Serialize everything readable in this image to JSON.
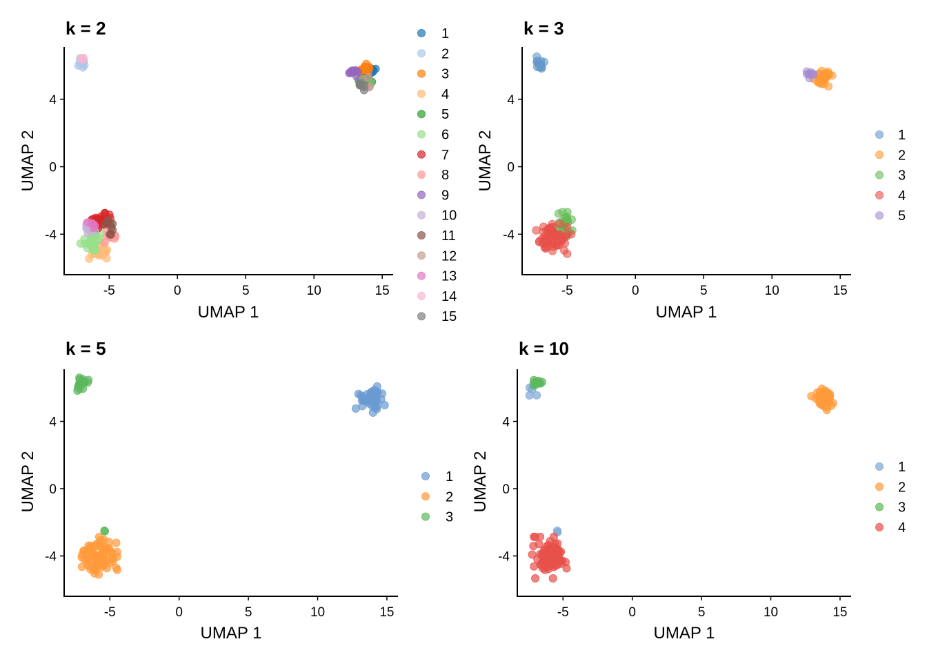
{
  "chart_data": [
    {
      "type": "scatter",
      "title": "k = 2",
      "xlabel": "UMAP 1",
      "ylabel": "UMAP 2",
      "xlim": [
        -8.3,
        15.8
      ],
      "ylim": [
        -6.4,
        7.1
      ],
      "xticks": [
        -5,
        0,
        5,
        10,
        15
      ],
      "xtick_labels": [
        "-5",
        "0",
        "5",
        "10",
        "15"
      ],
      "yticks": [
        -4,
        0,
        4
      ],
      "ytick_labels": [
        "-4",
        "0",
        "4"
      ],
      "grid": false,
      "legend_position": "right",
      "point_alpha": 0.7,
      "series": [
        {
          "name": "1",
          "color": "#1f77b4",
          "clusters": [
            {
              "cx": 14.1,
              "cy": 5.7,
              "rx": 0.4,
              "ry": 0.3,
              "n": 10
            }
          ]
        },
        {
          "name": "2",
          "color": "#aec7e8",
          "clusters": [
            {
              "cx": -7.0,
              "cy": 6.1,
              "rx": 0.35,
              "ry": 0.35,
              "n": 12
            }
          ]
        },
        {
          "name": "3",
          "color": "#ff7f0e",
          "clusters": [
            {
              "cx": 13.7,
              "cy": 5.7,
              "rx": 0.5,
              "ry": 0.3,
              "n": 12
            }
          ]
        },
        {
          "name": "4",
          "color": "#ffbb78",
          "clusters": [
            {
              "cx": -5.7,
              "cy": -5.0,
              "rx": 0.7,
              "ry": 0.35,
              "n": 22
            }
          ]
        },
        {
          "name": "5",
          "color": "#2ca02c",
          "clusters": [
            {
              "cx": 13.6,
              "cy": 5.0,
              "rx": 0.5,
              "ry": 0.35,
              "n": 8
            }
          ]
        },
        {
          "name": "6",
          "color": "#98df8a",
          "clusters": [
            {
              "cx": -6.2,
              "cy": -4.3,
              "rx": 0.8,
              "ry": 0.5,
              "n": 28
            }
          ]
        },
        {
          "name": "7",
          "color": "#d62728",
          "clusters": [
            {
              "cx": -5.5,
              "cy": -3.2,
              "rx": 0.6,
              "ry": 0.4,
              "n": 22
            }
          ]
        },
        {
          "name": "8",
          "color": "#ff9896",
          "clusters": [
            {
              "cx": -4.8,
              "cy": -4.1,
              "rx": 0.4,
              "ry": 0.35,
              "n": 12
            }
          ]
        },
        {
          "name": "9",
          "color": "#9467bd",
          "clusters": [
            {
              "cx": 12.9,
              "cy": 5.6,
              "rx": 0.5,
              "ry": 0.25,
              "n": 10
            }
          ]
        },
        {
          "name": "10",
          "color": "#c5b0d5",
          "clusters": [
            {
              "cx": -6.5,
              "cy": -3.7,
              "rx": 0.4,
              "ry": 0.3,
              "n": 6
            }
          ]
        },
        {
          "name": "11",
          "color": "#8c564b",
          "clusters": [
            {
              "cx": -5.0,
              "cy": -3.5,
              "rx": 0.4,
              "ry": 0.4,
              "n": 8
            }
          ]
        },
        {
          "name": "12",
          "color": "#c49c94",
          "clusters": [
            {
              "cx": 13.9,
              "cy": 5.1,
              "rx": 0.4,
              "ry": 0.3,
              "n": 5
            }
          ]
        },
        {
          "name": "13",
          "color": "#e377c2",
          "clusters": [
            {
              "cx": -6.3,
              "cy": -3.3,
              "rx": 0.3,
              "ry": 0.25,
              "n": 5
            }
          ]
        },
        {
          "name": "14",
          "color": "#f7b6d2",
          "clusters": [
            {
              "cx": -7.0,
              "cy": 6.4,
              "rx": 0.2,
              "ry": 0.15,
              "n": 4
            }
          ]
        },
        {
          "name": "15",
          "color": "#7f7f7f",
          "clusters": [
            {
              "cx": 13.4,
              "cy": 4.8,
              "rx": 0.3,
              "ry": 0.25,
              "n": 5
            }
          ]
        }
      ]
    },
    {
      "type": "scatter",
      "title": "k = 3",
      "xlabel": "UMAP 1",
      "ylabel": "UMAP 2",
      "xlim": [
        -8.3,
        15.8
      ],
      "ylim": [
        -6.4,
        7.1
      ],
      "xticks": [
        -5,
        0,
        5,
        10,
        15
      ],
      "xtick_labels": [
        "-5",
        "0",
        "5",
        "10",
        "15"
      ],
      "yticks": [
        -4,
        0,
        4
      ],
      "ytick_labels": [
        "-4",
        "0",
        "4"
      ],
      "grid": false,
      "legend_position": "right",
      "point_alpha": 0.6,
      "series": [
        {
          "name": "1",
          "color": "#6699cc",
          "clusters": [
            {
              "cx": -7.0,
              "cy": 6.1,
              "rx": 0.35,
              "ry": 0.4,
              "n": 16
            }
          ]
        },
        {
          "name": "2",
          "color": "#ff9933",
          "clusters": [
            {
              "cx": 13.8,
              "cy": 5.3,
              "rx": 0.6,
              "ry": 0.55,
              "n": 34
            }
          ]
        },
        {
          "name": "3",
          "color": "#66bb55",
          "clusters": [
            {
              "cx": -5.2,
              "cy": -3.6,
              "rx": 0.6,
              "ry": 0.7,
              "n": 28
            }
          ]
        },
        {
          "name": "4",
          "color": "#e8504a",
          "clusters": [
            {
              "cx": -6.0,
              "cy": -4.3,
              "rx": 1.0,
              "ry": 0.8,
              "n": 60
            }
          ]
        },
        {
          "name": "5",
          "color": "#a58ad0",
          "clusters": [
            {
              "cx": 12.9,
              "cy": 5.5,
              "rx": 0.4,
              "ry": 0.25,
              "n": 8
            }
          ]
        }
      ]
    },
    {
      "type": "scatter",
      "title": "k = 5",
      "xlabel": "UMAP 1",
      "ylabel": "UMAP 2",
      "xlim": [
        -8.3,
        15.8
      ],
      "ylim": [
        -6.4,
        7.1
      ],
      "xticks": [
        -5,
        0,
        5,
        10,
        15
      ],
      "xtick_labels": [
        "-5",
        "0",
        "5",
        "10",
        "15"
      ],
      "yticks": [
        -4,
        0,
        4
      ],
      "ytick_labels": [
        "-4",
        "0",
        "4"
      ],
      "grid": false,
      "legend_position": "right",
      "point_alpha": 0.7,
      "series": [
        {
          "name": "1",
          "color": "#6a9bd1",
          "clusters": [
            {
              "cx": 13.8,
              "cy": 5.3,
              "rx": 0.8,
              "ry": 0.6,
              "n": 45
            }
          ]
        },
        {
          "name": "2",
          "color": "#ff9a3c",
          "clusters": [
            {
              "cx": -5.9,
              "cy": -4.1,
              "rx": 1.1,
              "ry": 0.95,
              "n": 80
            }
          ]
        },
        {
          "name": "3",
          "color": "#5cb85c",
          "clusters": [
            {
              "cx": -7.0,
              "cy": 6.2,
              "rx": 0.35,
              "ry": 0.4,
              "n": 16
            },
            {
              "cx": -5.4,
              "cy": -2.5,
              "rx": 0.1,
              "ry": 0.1,
              "n": 2
            }
          ]
        }
      ]
    },
    {
      "type": "scatter",
      "title": "k = 10",
      "xlabel": "UMAP 1",
      "ylabel": "UMAP 2",
      "xlim": [
        -8.3,
        15.8
      ],
      "ylim": [
        -6.4,
        7.1
      ],
      "xticks": [
        -5,
        0,
        5,
        10,
        15
      ],
      "xtick_labels": [
        "-5",
        "0",
        "5",
        "10",
        "15"
      ],
      "yticks": [
        -4,
        0,
        4
      ],
      "ytick_labels": [
        "-4",
        "0",
        "4"
      ],
      "grid": false,
      "legend_position": "right",
      "point_alpha": 0.7,
      "series": [
        {
          "name": "1",
          "color": "#7fa7d6",
          "clusters": [
            {
              "cx": -7.2,
              "cy": 5.7,
              "rx": 0.25,
              "ry": 0.3,
              "n": 4
            },
            {
              "cx": -5.4,
              "cy": -2.5,
              "rx": 0.1,
              "ry": 0.1,
              "n": 2
            }
          ]
        },
        {
          "name": "2",
          "color": "#ff9a3c",
          "clusters": [
            {
              "cx": 13.8,
              "cy": 5.3,
              "rx": 0.7,
              "ry": 0.55,
              "n": 40
            }
          ]
        },
        {
          "name": "3",
          "color": "#5cb85c",
          "clusters": [
            {
              "cx": -6.9,
              "cy": 6.3,
              "rx": 0.35,
              "ry": 0.25,
              "n": 12
            }
          ]
        },
        {
          "name": "4",
          "color": "#e8504a",
          "clusters": [
            {
              "cx": -5.9,
              "cy": -4.1,
              "rx": 1.1,
              "ry": 0.95,
              "n": 80
            }
          ]
        }
      ]
    }
  ]
}
